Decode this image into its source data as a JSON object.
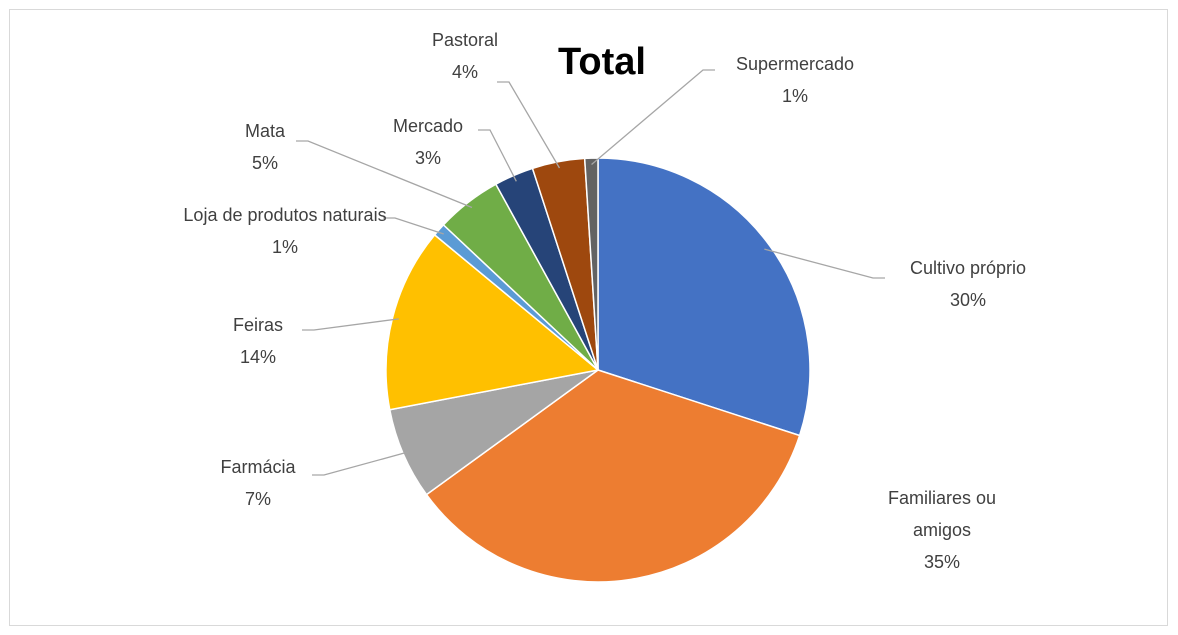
{
  "chart_data": {
    "type": "pie",
    "title": "Total",
    "categories": [
      "Cultivo próprio",
      "Familiares ou amigos",
      "Farmácia",
      "Feiras",
      "Loja de produtos naturais",
      "Mata",
      "Mercado",
      "Pastoral",
      "Supermercado"
    ],
    "values": [
      30,
      35,
      7,
      14,
      1,
      5,
      3,
      4,
      1
    ],
    "value_labels": [
      "30%",
      "35%",
      "7%",
      "14%",
      "1%",
      "5%",
      "3%",
      "4%",
      "1%"
    ],
    "colors": [
      "#4472c4",
      "#ed7d31",
      "#a5a5a5",
      "#ffc000",
      "#5b9bd5",
      "#70ad47",
      "#264478",
      "#9e480e",
      "#636363"
    ]
  }
}
